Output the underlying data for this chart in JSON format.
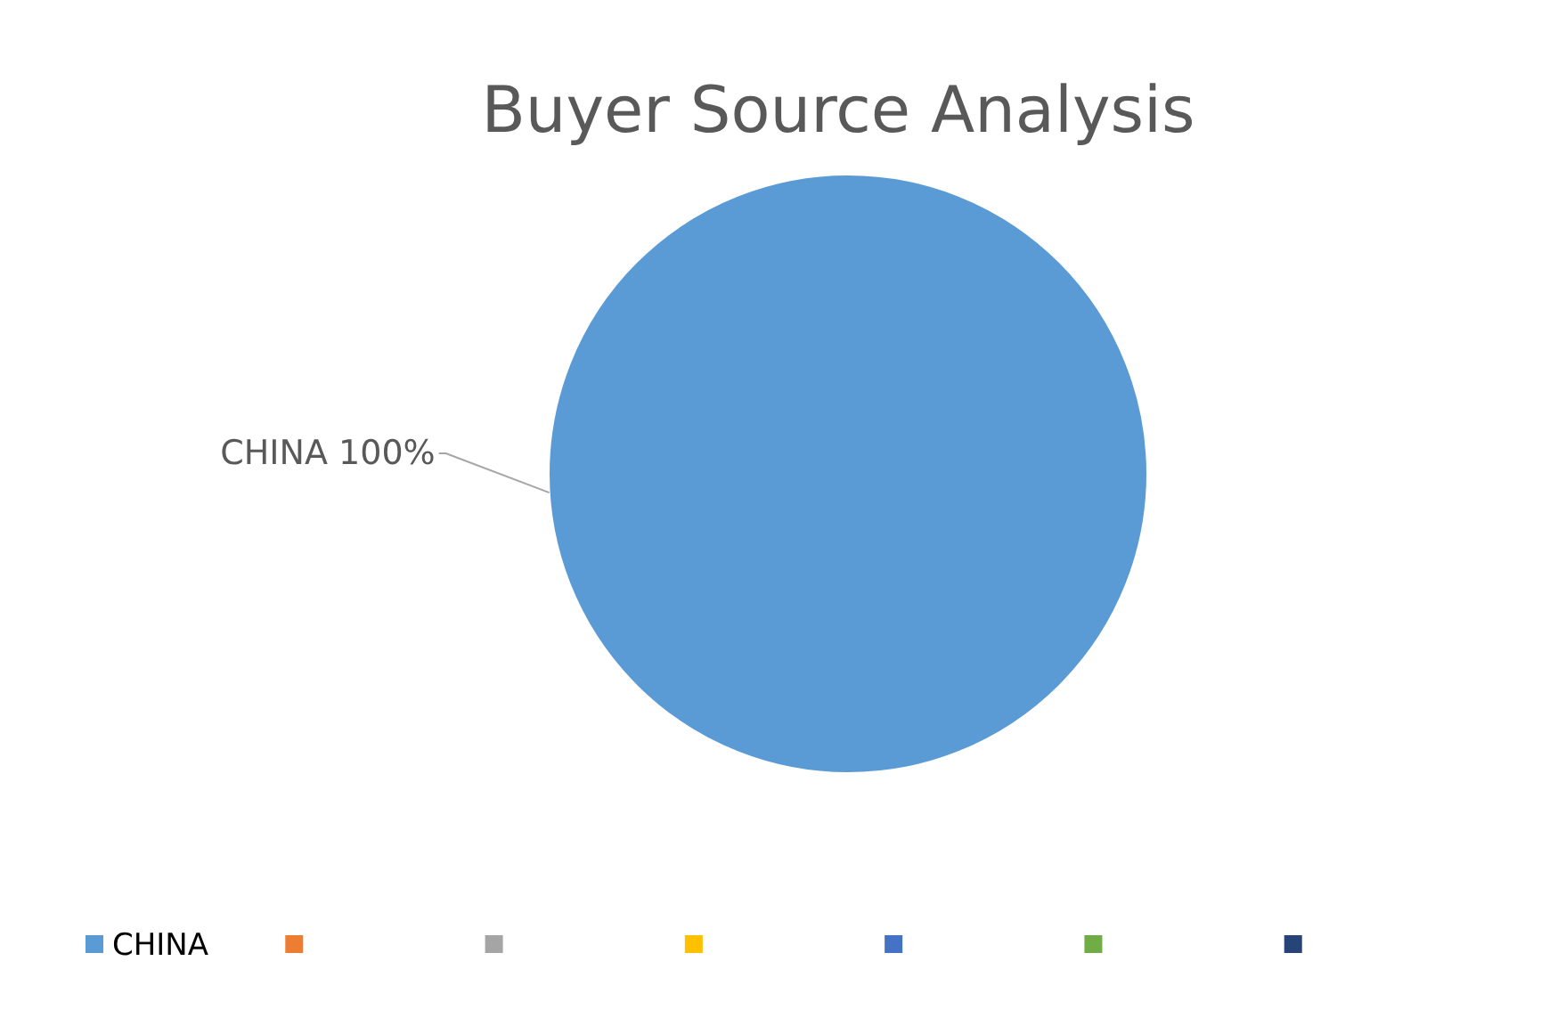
{
  "chart_data": {
    "type": "pie",
    "title": "Buyer Source Analysis",
    "categories": [
      "CHINA",
      null,
      null,
      null,
      null,
      null,
      null
    ],
    "values": [
      100,
      0,
      0,
      0,
      0,
      0,
      0
    ],
    "colors": [
      "#5b9bd5",
      "#ed7d31",
      "#a5a5a5",
      "#ffc000",
      "#4472c4",
      "#70ad47",
      "#264478"
    ],
    "value_labels": [
      "CHINA 100%",
      null,
      null,
      null,
      null,
      null,
      null
    ],
    "legend": "bottom"
  }
}
